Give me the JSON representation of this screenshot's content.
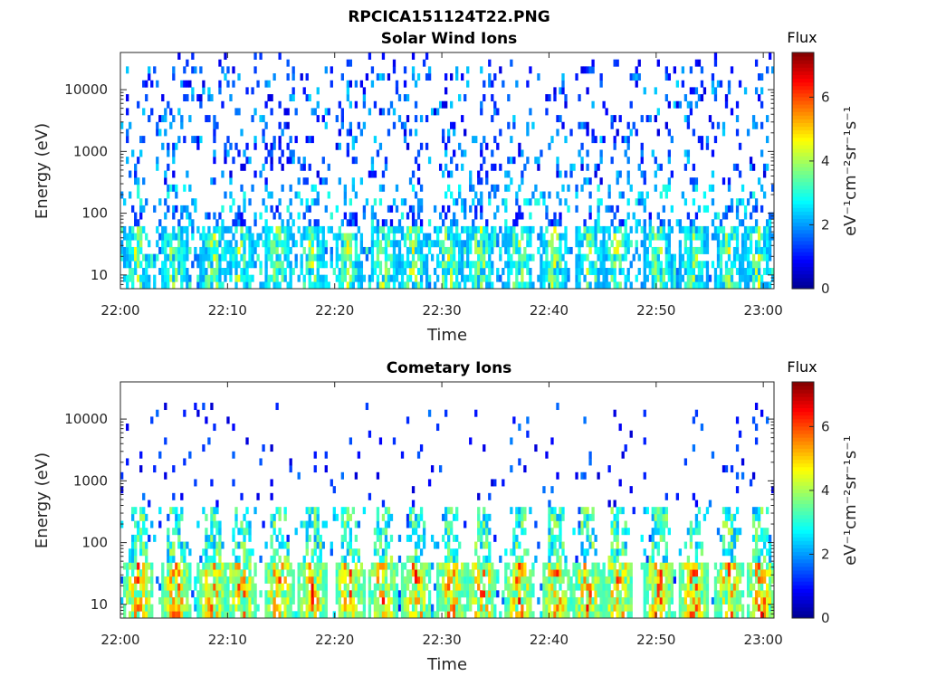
{
  "figure": {
    "title": "RPCICA151124T22.PNG"
  },
  "colormap": {
    "name": "jet",
    "stops": [
      "#00008f",
      "#0000ff",
      "#00ffff",
      "#ffff00",
      "#ff0000",
      "#800000"
    ]
  },
  "chart_data": [
    {
      "type": "heatmap",
      "title": "Solar Wind Ions",
      "xlabel": "Time",
      "ylabel": "Energy (eV)",
      "x_range": [
        "22:00",
        "23:01"
      ],
      "x_ticks": [
        "22:00",
        "22:10",
        "22:20",
        "22:30",
        "22:40",
        "22:50",
        "23:00"
      ],
      "y_scale": "log",
      "y_range": [
        6,
        40000
      ],
      "y_ticks": [
        10,
        100,
        1000,
        10000
      ],
      "y_tick_labels": [
        "10",
        "100",
        "1000",
        "10000"
      ],
      "colorbar": {
        "title": "Flux",
        "label": "eV⁻¹cm⁻²sr⁻¹s⁻¹",
        "range": [
          0,
          7.4
        ],
        "ticks": [
          0,
          2,
          4,
          6
        ]
      },
      "low_energy_bursts_min": [
        1.5,
        5.0,
        8.7,
        11.2,
        14.7,
        17.8,
        21.3,
        24.6,
        27.3,
        30.6,
        33.6,
        37.2,
        40.5,
        43.8,
        46.3,
        50.2,
        53.5,
        56.8,
        59.5
      ],
      "background_flux": "sparse 1-3 across 100-30000 eV",
      "peak_flux_approx": 5
    },
    {
      "type": "heatmap",
      "title": "Cometary Ions",
      "xlabel": "Time",
      "ylabel": "Energy (eV)",
      "x_range": [
        "22:00",
        "23:01"
      ],
      "x_ticks": [
        "22:00",
        "22:10",
        "22:20",
        "22:30",
        "22:40",
        "22:50",
        "23:00"
      ],
      "y_scale": "log",
      "y_range": [
        6,
        40000
      ],
      "y_ticks": [
        10,
        100,
        1000,
        10000
      ],
      "y_tick_labels": [
        "10",
        "100",
        "1000",
        "10000"
      ],
      "colorbar": {
        "title": "Flux",
        "label": "eV⁻¹cm⁻²sr⁻¹s⁻¹",
        "range": [
          0,
          7.4
        ],
        "ticks": [
          0,
          2,
          4,
          6
        ]
      },
      "low_energy_bursts_min": [
        1.7,
        5.2,
        8.6,
        11.3,
        14.8,
        17.9,
        21.4,
        24.5,
        27.6,
        30.9,
        33.8,
        37.2,
        40.7,
        43.6,
        46.5,
        50.3,
        53.5,
        56.8,
        59.8
      ],
      "background_flux": "very sparse 1-2 above 300 eV",
      "peak_flux_approx": 6.5
    }
  ]
}
